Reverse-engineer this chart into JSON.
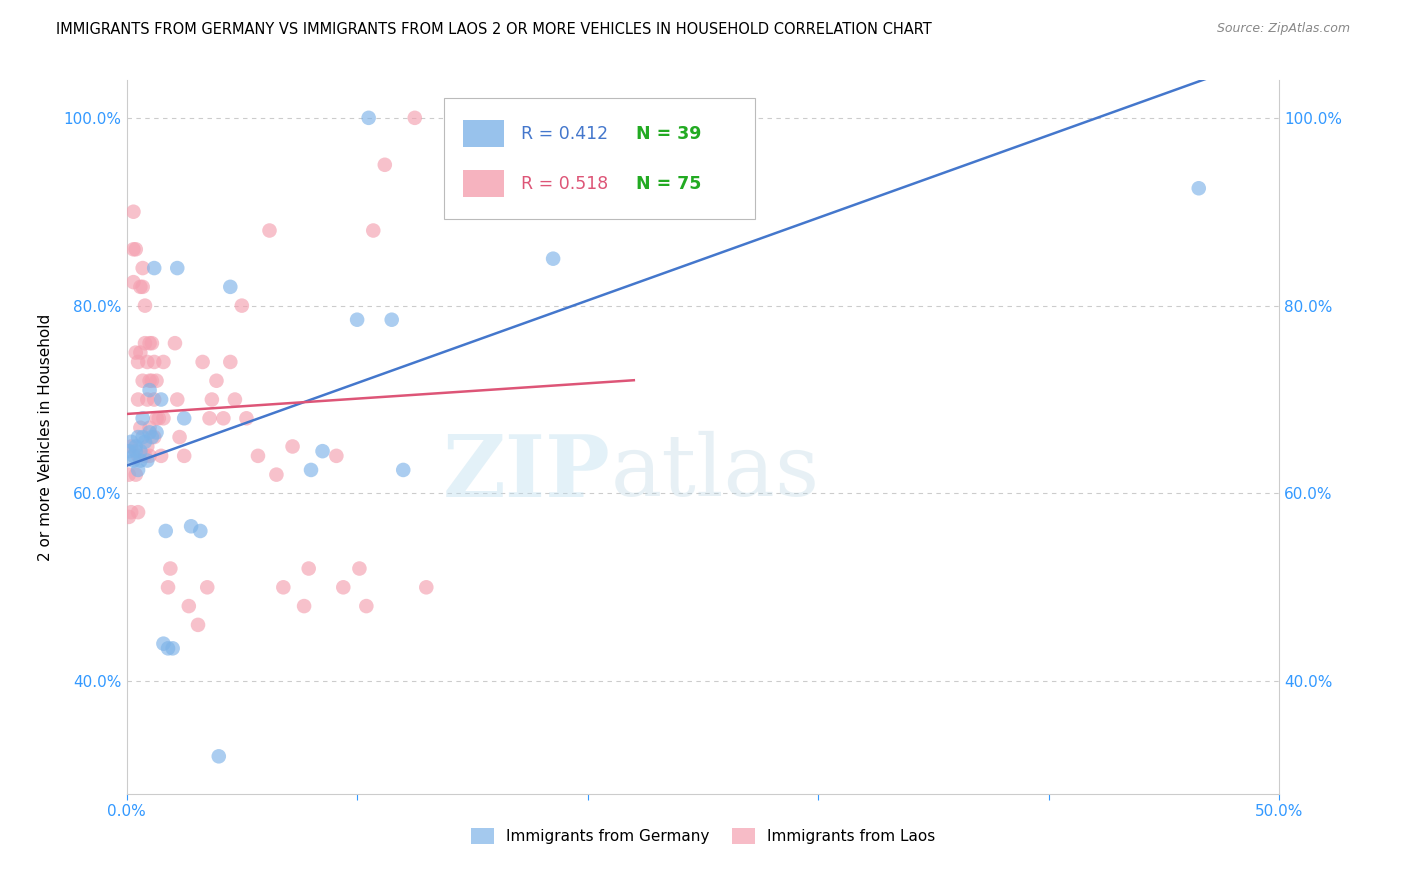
{
  "title": "IMMIGRANTS FROM GERMANY VS IMMIGRANTS FROM LAOS 2 OR MORE VEHICLES IN HOUSEHOLD CORRELATION CHART",
  "source": "Source: ZipAtlas.com",
  "ylabel": "2 or more Vehicles in Household",
  "xlim": [
    0.0,
    0.5
  ],
  "ylim": [
    0.28,
    1.04
  ],
  "xtick_labels": [
    "0.0%",
    "",
    "",
    "",
    "",
    "50.0%"
  ],
  "xtick_values": [
    0.0,
    0.1,
    0.2,
    0.3,
    0.4,
    0.5
  ],
  "ytick_labels": [
    "40.0%",
    "60.0%",
    "80.0%",
    "100.0%"
  ],
  "ytick_values": [
    0.4,
    0.6,
    0.8,
    1.0
  ],
  "germany_color": "#7EB3E8",
  "laos_color": "#F4A0B0",
  "germany_line_color": "#4477CC",
  "laos_line_color": "#DD5577",
  "germany_R": 0.412,
  "germany_N": 39,
  "laos_R": 0.518,
  "laos_N": 75,
  "legend_labels": [
    "Immigrants from Germany",
    "Immigrants from Laos"
  ],
  "germany_x": [
    0.001,
    0.002,
    0.003,
    0.003,
    0.004,
    0.004,
    0.005,
    0.005,
    0.006,
    0.006,
    0.007,
    0.007,
    0.008,
    0.009,
    0.01,
    0.01,
    0.011,
    0.012,
    0.013,
    0.015,
    0.016,
    0.017,
    0.018,
    0.02,
    0.022,
    0.025,
    0.028,
    0.032,
    0.04,
    0.045,
    0.08,
    0.085,
    0.1,
    0.105,
    0.115,
    0.12,
    0.185,
    0.215,
    0.465
  ],
  "germany_y": [
    0.645,
    0.655,
    0.64,
    0.635,
    0.65,
    0.645,
    0.66,
    0.625,
    0.645,
    0.635,
    0.68,
    0.66,
    0.655,
    0.635,
    0.71,
    0.665,
    0.66,
    0.84,
    0.665,
    0.7,
    0.44,
    0.56,
    0.435,
    0.435,
    0.84,
    0.68,
    0.565,
    0.56,
    0.32,
    0.82,
    0.625,
    0.645,
    0.785,
    1.0,
    0.785,
    0.625,
    0.85,
    1.0,
    0.925
  ],
  "laos_x": [
    0.001,
    0.001,
    0.002,
    0.002,
    0.003,
    0.003,
    0.003,
    0.004,
    0.004,
    0.004,
    0.005,
    0.005,
    0.005,
    0.005,
    0.006,
    0.006,
    0.006,
    0.007,
    0.007,
    0.007,
    0.008,
    0.008,
    0.008,
    0.009,
    0.009,
    0.009,
    0.01,
    0.01,
    0.01,
    0.01,
    0.011,
    0.011,
    0.012,
    0.012,
    0.012,
    0.013,
    0.013,
    0.014,
    0.015,
    0.016,
    0.016,
    0.018,
    0.019,
    0.021,
    0.022,
    0.023,
    0.025,
    0.027,
    0.031,
    0.033,
    0.035,
    0.036,
    0.037,
    0.039,
    0.042,
    0.045,
    0.047,
    0.05,
    0.052,
    0.057,
    0.062,
    0.065,
    0.068,
    0.072,
    0.077,
    0.079,
    0.091,
    0.094,
    0.101,
    0.104,
    0.107,
    0.112,
    0.125,
    0.13,
    0.208
  ],
  "laos_y": [
    0.575,
    0.62,
    0.65,
    0.58,
    0.86,
    0.9,
    0.825,
    0.86,
    0.75,
    0.62,
    0.74,
    0.7,
    0.64,
    0.58,
    0.67,
    0.75,
    0.82,
    0.72,
    0.84,
    0.82,
    0.8,
    0.76,
    0.64,
    0.74,
    0.7,
    0.65,
    0.76,
    0.72,
    0.67,
    0.64,
    0.76,
    0.72,
    0.7,
    0.66,
    0.74,
    0.68,
    0.72,
    0.68,
    0.64,
    0.74,
    0.68,
    0.5,
    0.52,
    0.76,
    0.7,
    0.66,
    0.64,
    0.48,
    0.46,
    0.74,
    0.5,
    0.68,
    0.7,
    0.72,
    0.68,
    0.74,
    0.7,
    0.8,
    0.68,
    0.64,
    0.88,
    0.62,
    0.5,
    0.65,
    0.48,
    0.52,
    0.64,
    0.5,
    0.52,
    0.48,
    0.88,
    0.95,
    1.0,
    0.5,
    1.01
  ]
}
